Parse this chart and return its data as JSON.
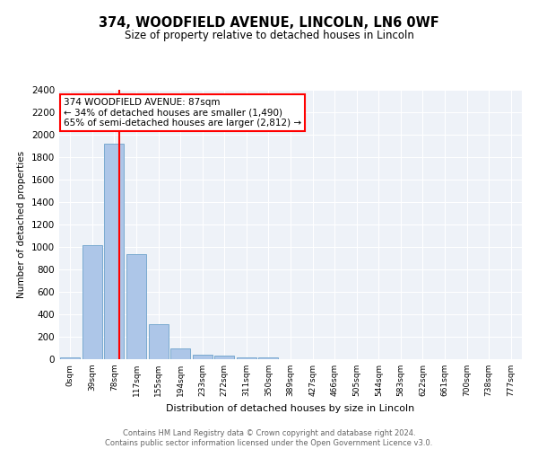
{
  "title": "374, WOODFIELD AVENUE, LINCOLN, LN6 0WF",
  "subtitle": "Size of property relative to detached houses in Lincoln",
  "xlabel": "Distribution of detached houses by size in Lincoln",
  "ylabel": "Number of detached properties",
  "bar_color": "#adc6e8",
  "bar_edge_color": "#7aaad0",
  "bar_values": [
    20,
    1020,
    1920,
    940,
    310,
    100,
    40,
    30,
    20,
    20,
    0,
    0,
    0,
    0,
    0,
    0,
    0,
    0,
    0,
    0,
    0
  ],
  "bar_labels": [
    "0sqm",
    "39sqm",
    "78sqm",
    "117sqm",
    "155sqm",
    "194sqm",
    "233sqm",
    "272sqm",
    "311sqm",
    "350sqm",
    "389sqm",
    "427sqm",
    "466sqm",
    "505sqm",
    "544sqm",
    "583sqm",
    "622sqm",
    "661sqm",
    "700sqm",
    "738sqm",
    "777sqm"
  ],
  "ylim": [
    0,
    2400
  ],
  "yticks": [
    0,
    200,
    400,
    600,
    800,
    1000,
    1200,
    1400,
    1600,
    1800,
    2000,
    2200,
    2400
  ],
  "red_line_x": 2.23,
  "annotation_text_line1": "374 WOODFIELD AVENUE: 87sqm",
  "annotation_text_line2": "← 34% of detached houses are smaller (1,490)",
  "annotation_text_line3": "65% of semi-detached houses are larger (2,812) →",
  "footer_line1": "Contains HM Land Registry data © Crown copyright and database right 2024.",
  "footer_line2": "Contains public sector information licensed under the Open Government Licence v3.0.",
  "background_color": "#eef2f8",
  "grid_color": "#ffffff"
}
